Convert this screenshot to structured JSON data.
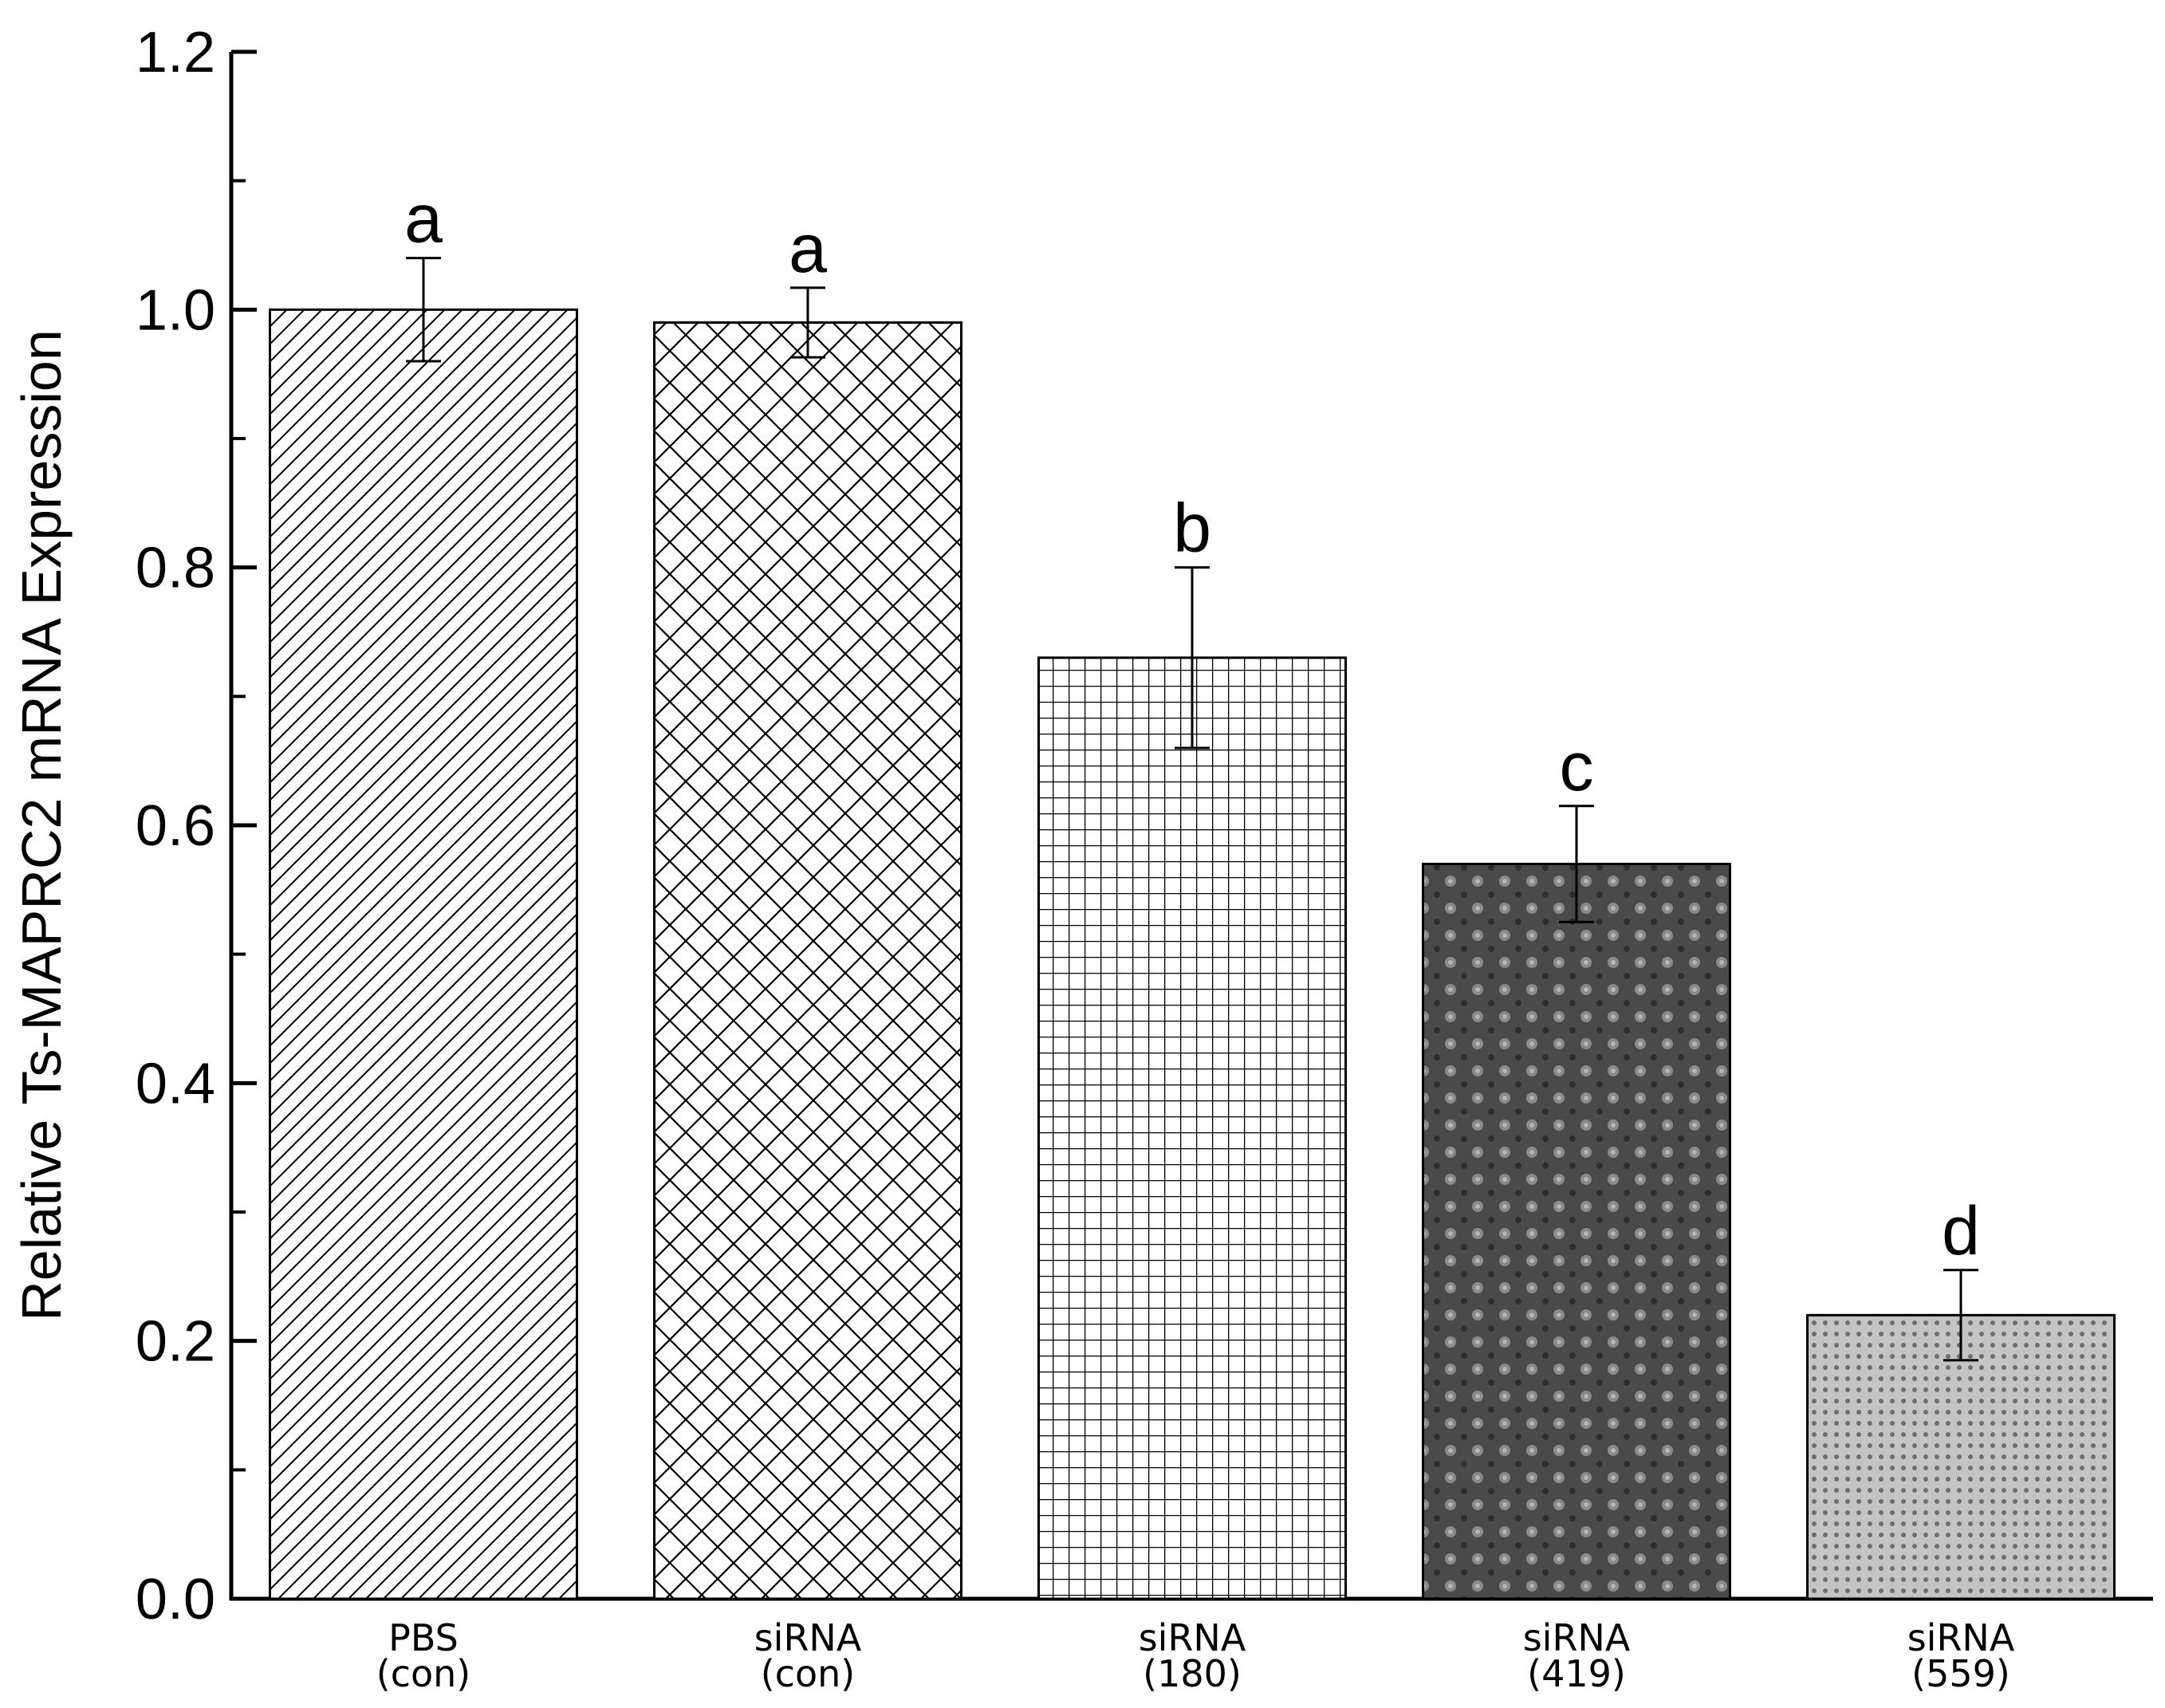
{
  "chart_data": {
    "type": "bar",
    "title": "",
    "xlabel": "",
    "ylabel": "Relative Ts-MAPRC2 mRNA Expression",
    "ylim": [
      0,
      1.2
    ],
    "yticks": [
      "0.0",
      "0.2",
      "0.4",
      "0.6",
      "0.8",
      "1.0",
      "1.2"
    ],
    "grid": false,
    "legend": "none",
    "categories": [
      {
        "line1": "PBS",
        "line2": "(con)"
      },
      {
        "line1": "siRNA",
        "line2": "(con)"
      },
      {
        "line1": "siRNA",
        "line2": "(180)"
      },
      {
        "line1": "siRNA",
        "line2": "(419)"
      },
      {
        "line1": "siRNA",
        "line2": "(559)"
      }
    ],
    "values": [
      1.0,
      0.99,
      0.73,
      0.57,
      0.22
    ],
    "error": [
      0.04,
      0.027,
      0.07,
      0.045,
      0.035
    ],
    "significance": [
      "a",
      "a",
      "b",
      "c",
      "d"
    ],
    "fill_patterns": [
      "diagonal-hatch",
      "cross-hatch",
      "grid",
      "dark-dotted",
      "light-dotted"
    ],
    "colors": {
      "outline": "#000000",
      "dark_fill": "#4a4a4a",
      "light_fill": "#bdbdbd"
    }
  }
}
